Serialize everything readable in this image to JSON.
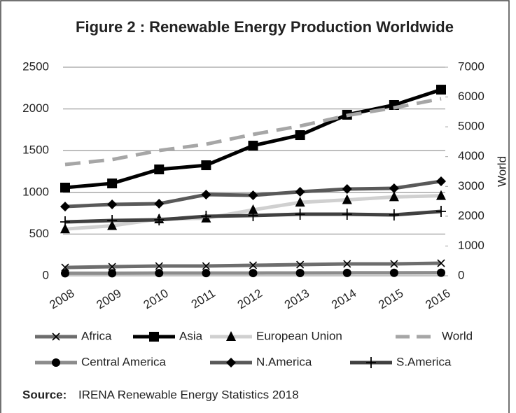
{
  "chart_data": {
    "type": "line",
    "title": "Figure 2 : Renewable Energy Production Worldwide",
    "categories": [
      "2008",
      "2009",
      "2010",
      "2011",
      "2012",
      "2013",
      "2014",
      "2015",
      "2016"
    ],
    "ylim": [
      0,
      2500
    ],
    "yticks": [
      0,
      500,
      1000,
      1500,
      2000,
      2500
    ],
    "y2lim": [
      0,
      7000
    ],
    "y2ticks": [
      0,
      1000,
      2000,
      3000,
      4000,
      5000,
      6000,
      7000
    ],
    "y2label": "World",
    "grid": true,
    "series": [
      {
        "name": "Africa",
        "color": "#6d6d6d",
        "marker": "x",
        "values": [
          100,
          109,
          117,
          117,
          126,
          134,
          143,
          143,
          151
        ]
      },
      {
        "name": "Asia",
        "color": "#000000",
        "marker": "square",
        "values": [
          1057,
          1107,
          1275,
          1325,
          1560,
          1686,
          1930,
          2047,
          2231
        ]
      },
      {
        "name": "European Union",
        "color": "#d0d0d0",
        "marker": "triangle",
        "values": [
          560,
          600,
          680,
          690,
          790,
          880,
          910,
          945,
          960
        ]
      },
      {
        "name": "World",
        "color": "#a6a6a6",
        "dash": true,
        "axis": "y2",
        "values": [
          3735,
          3900,
          4205,
          4416,
          4745,
          5027,
          5380,
          5638,
          5943
        ]
      },
      {
        "name": "Central America",
        "color": "#8c8c8c",
        "marker": "circle",
        "values": [
          30,
          30,
          32,
          32,
          33,
          34,
          35,
          36,
          37
        ]
      },
      {
        "name": "N.America",
        "color": "#595959",
        "marker": "diamond",
        "values": [
          830,
          856,
          864,
          973,
          965,
          1007,
          1040,
          1049,
          1133
        ]
      },
      {
        "name": "S.America",
        "color": "#404040",
        "marker": "plus",
        "values": [
          646,
          663,
          671,
          713,
          722,
          738,
          738,
          730,
          772
        ]
      }
    ],
    "source_label": "Source:",
    "source_text": "IRENA Renewable Energy Statistics 2018"
  }
}
